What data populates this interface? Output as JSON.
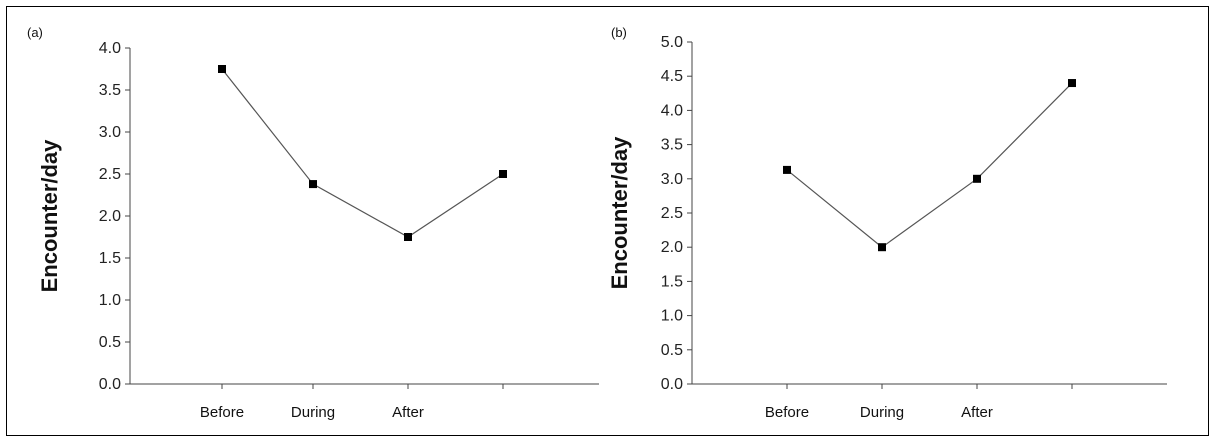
{
  "chart_data": [
    {
      "type": "line",
      "panel_label": "(a)",
      "ylabel": "Encounter/day",
      "xlabel": "",
      "ylim": [
        0,
        4.0
      ],
      "yticks": [
        "0.0",
        "0.5",
        "1.0",
        "1.5",
        "2.0",
        "2.5",
        "3.0",
        "3.5",
        "4.0"
      ],
      "categories": [
        "Before",
        "During",
        "After",
        ""
      ],
      "series": [
        {
          "values": [
            3.75,
            2.38,
            1.75,
            2.5
          ]
        }
      ],
      "grid": false,
      "marker": "square"
    },
    {
      "type": "line",
      "panel_label": "(b)",
      "ylabel": "Encounter/day",
      "xlabel": "",
      "ylim": [
        0,
        5.0
      ],
      "yticks": [
        "0.0",
        "0.5",
        "1.0",
        "1.5",
        "2.0",
        "2.5",
        "3.0",
        "3.5",
        "4.0",
        "4.5",
        "5.0"
      ],
      "categories": [
        "Before",
        "During",
        "After",
        ""
      ],
      "series": [
        {
          "values": [
            3.13,
            2.0,
            3.0,
            4.4
          ]
        }
      ],
      "grid": false,
      "marker": "square"
    }
  ]
}
